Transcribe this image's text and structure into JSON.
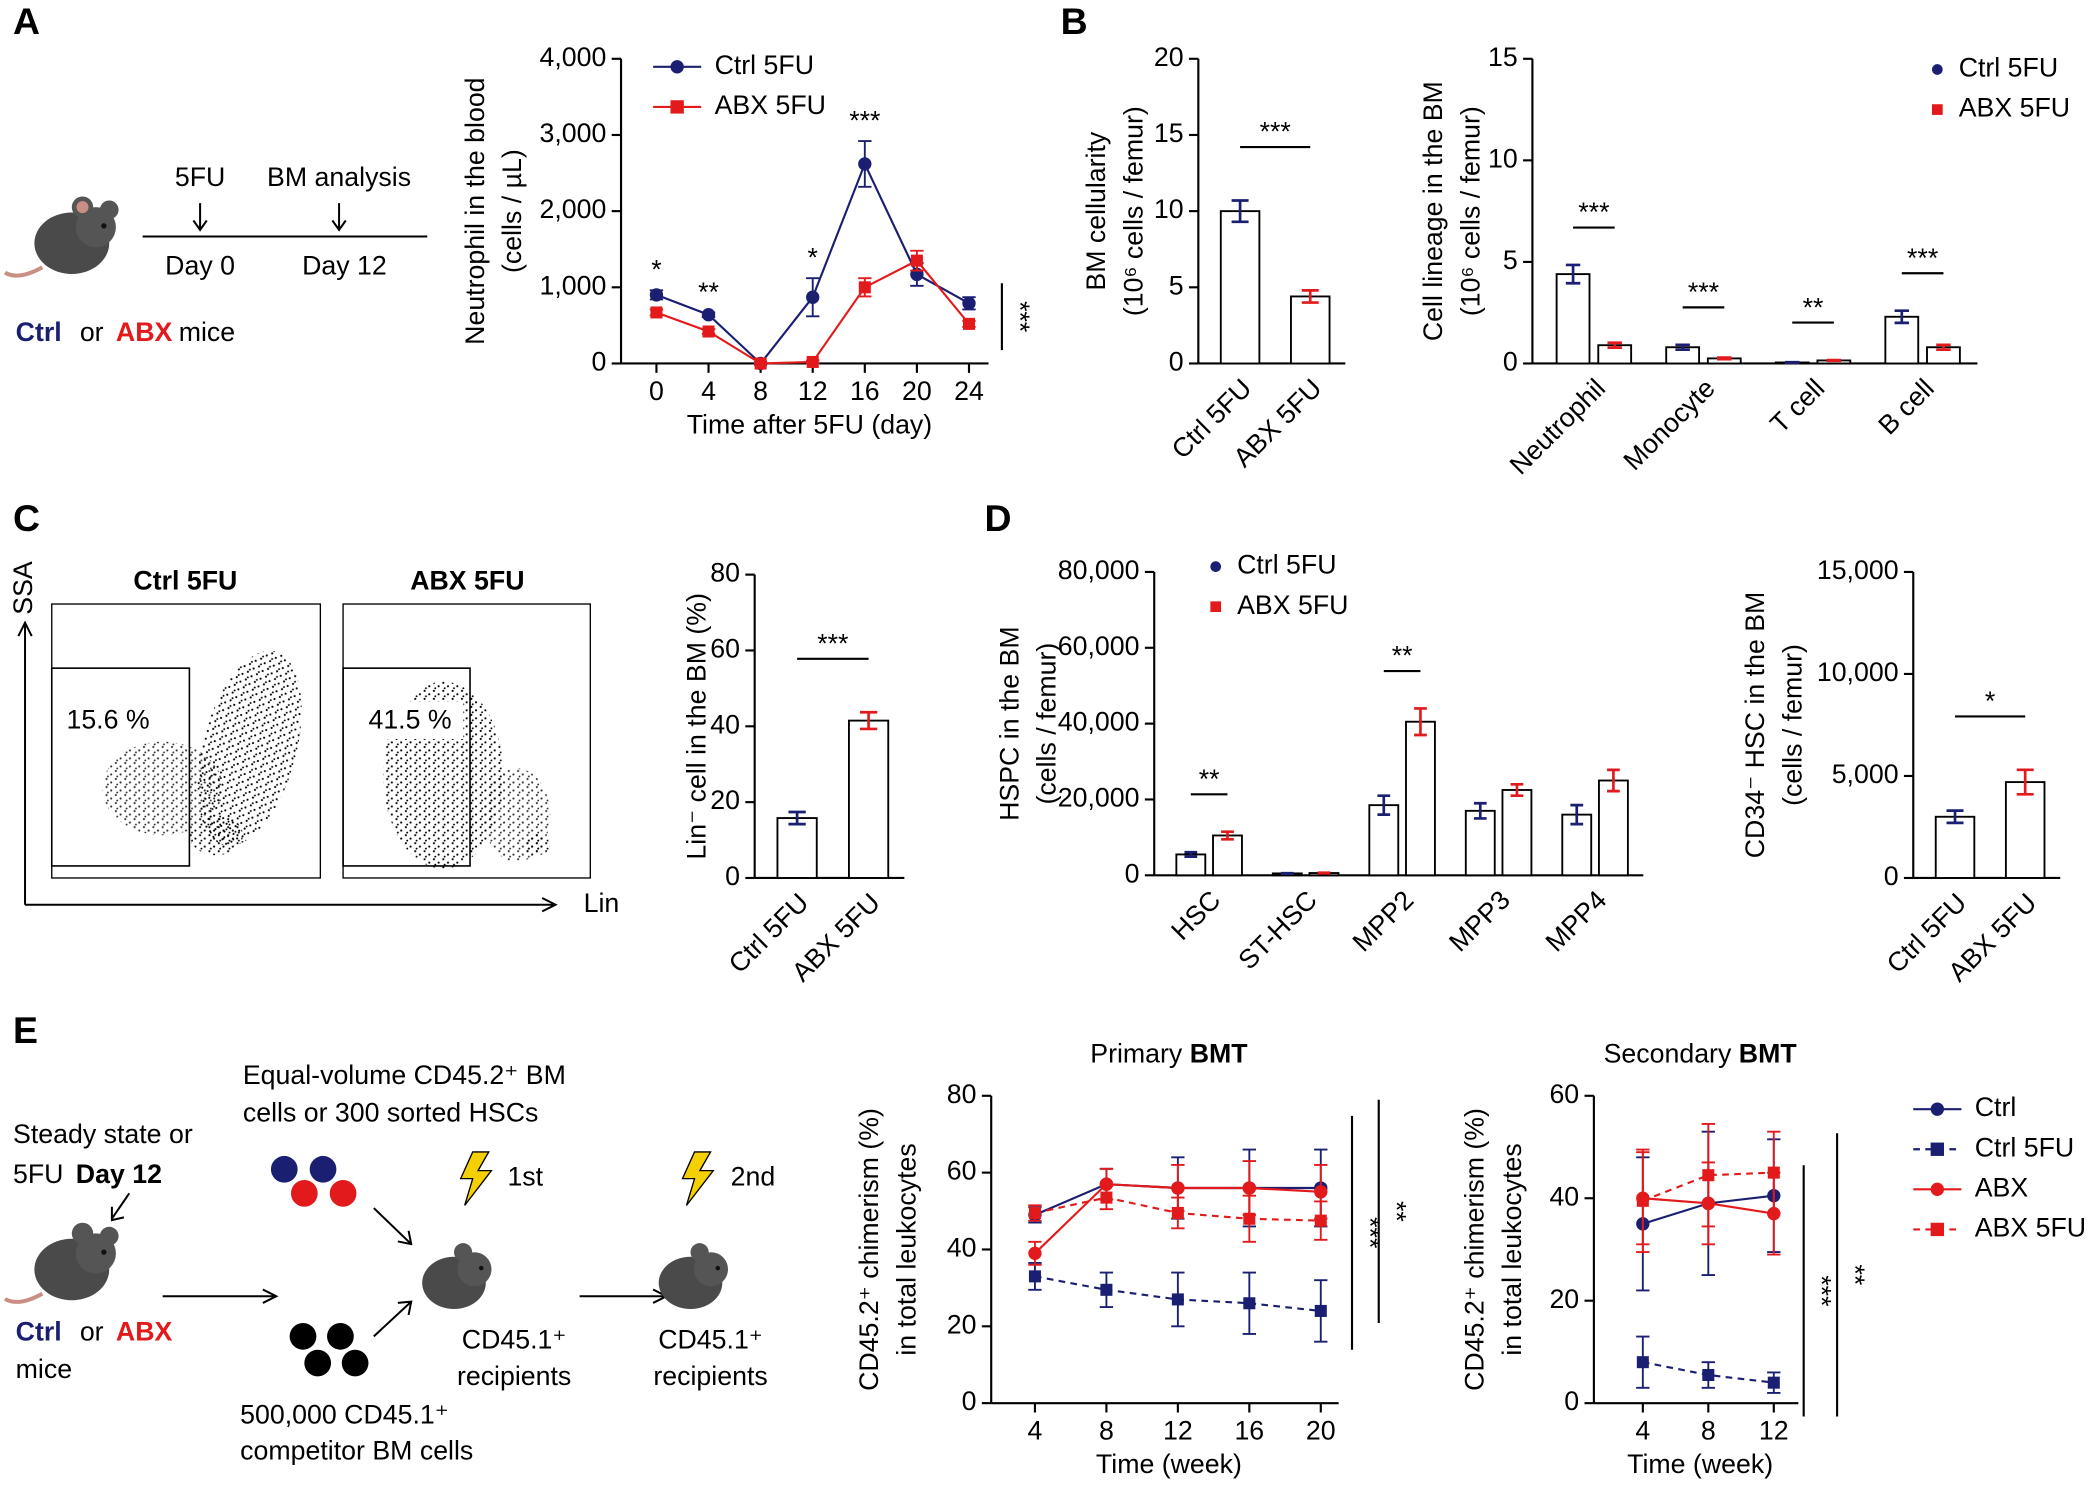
{
  "panel_labels": [
    "A",
    "B",
    "C",
    "D",
    "E"
  ],
  "schematic_a": {
    "events": [
      "5FU",
      "BM analysis"
    ],
    "days": [
      "Day 0",
      "Day 12"
    ],
    "group": [
      "Ctrl",
      "or",
      "ABX",
      "mice"
    ]
  },
  "flow": {
    "plots": [
      {
        "title": "Ctrl 5FU",
        "gate": "15.6 %"
      },
      {
        "title": "ABX 5FU",
        "gate": "41.5 %"
      }
    ],
    "y_axis": "SSA",
    "x_axis": "Lin"
  },
  "schematic_e": {
    "start": "Steady state or",
    "condition": [
      "5FU",
      "Day 12"
    ],
    "group": [
      "Ctrl",
      "or",
      "ABX",
      "mice"
    ],
    "donor": [
      "Equal-volume CD45.2⁺ BM",
      "cells or 300 sorted HSCs"
    ],
    "competitor": [
      "500,000 CD45.1⁺",
      "competitor BM cells"
    ],
    "irradiation": [
      "1st",
      "2nd"
    ],
    "recipients": [
      [
        "CD45.1⁺",
        "recipients"
      ],
      [
        "CD45.1⁺",
        "recipients"
      ]
    ]
  },
  "chart_data": [
    {
      "type": "line",
      "x": [
        0,
        4,
        8,
        12,
        16,
        20,
        24
      ],
      "xlim": [
        -2,
        25.5
      ],
      "xticks": [
        0,
        4,
        8,
        12,
        16,
        20,
        24
      ],
      "ylim": [
        0,
        4000
      ],
      "yticks": [
        0,
        {
          "value": 1000,
          "label": "1,000"
        },
        {
          "value": 2000,
          "label": "2,000"
        },
        {
          "value": 3000,
          "label": "3,000"
        },
        {
          "value": 4000,
          "label": "4,000"
        }
      ],
      "ylabel": [
        "Neutrophil in the blood",
        "(cells / µL)"
      ],
      "xlabel": "Time after 5FU (day)",
      "series": [
        {
          "name": "Ctrl 5FU",
          "color": "#1a1f71",
          "marker": "circle",
          "values": [
            900,
            640,
            0,
            870,
            2620,
            1170,
            790
          ],
          "errors": [
            60,
            30,
            0,
            250,
            300,
            150,
            80
          ]
        },
        {
          "name": "ABX 5FU",
          "color": "#e31a1c",
          "marker": "square",
          "values": [
            670,
            420,
            0,
            20,
            1000,
            1350,
            520
          ],
          "errors": [
            40,
            30,
            0,
            20,
            120,
            130,
            40
          ]
        }
      ],
      "annotations": [
        "*",
        "**",
        null,
        "*",
        "***",
        null,
        null
      ],
      "overall_annotations": [
        "***"
      ]
    },
    {
      "type": "bar",
      "categories": [
        "Ctrl 5FU",
        "ABX 5FU"
      ],
      "ylim": [
        0,
        20
      ],
      "yticks": [
        0,
        5,
        10,
        15,
        20
      ],
      "ylabel": [
        "BM cellularity",
        "(10⁶ cells / femur)"
      ],
      "series": [
        {
          "colors": [
            "#1a1f71",
            "#e31a1c"
          ],
          "values": [
            10.0,
            4.4
          ],
          "errors": [
            0.7,
            0.4
          ]
        }
      ],
      "comparisons": [
        "***"
      ]
    },
    {
      "type": "bar",
      "categories": [
        "Neutrophil",
        "Monocyte",
        "T cell",
        "B cell"
      ],
      "ylim": [
        0,
        15
      ],
      "yticks": [
        0,
        5,
        10,
        15
      ],
      "ylabel": [
        "Cell lineage in the BM",
        "(10⁶ cells / femur)"
      ],
      "series": [
        {
          "name": "Ctrl 5FU",
          "color": "#1a1f71",
          "marker": "circle",
          "values": [
            4.4,
            0.8,
            0.05,
            2.3
          ],
          "errors": [
            0.45,
            0.12,
            0.01,
            0.3
          ]
        },
        {
          "name": "ABX 5FU",
          "color": "#e31a1c",
          "marker": "square",
          "values": [
            0.9,
            0.25,
            0.15,
            0.8
          ],
          "errors": [
            0.12,
            0.04,
            0.02,
            0.12
          ]
        }
      ],
      "annotations": [
        "***",
        "***",
        "**",
        "***"
      ]
    },
    {
      "type": "bar",
      "categories": [
        "Ctrl 5FU",
        "ABX 5FU"
      ],
      "ylim": [
        0,
        80
      ],
      "yticks": [
        0,
        20,
        40,
        60,
        80
      ],
      "ylabel": [
        "Lin⁻ cell in the BM (%)"
      ],
      "series": [
        {
          "colors": [
            "#1a1f71",
            "#e31a1c"
          ],
          "values": [
            15.8,
            41.5
          ],
          "errors": [
            1.6,
            2.2
          ]
        }
      ],
      "comparisons": [
        "***"
      ]
    },
    {
      "type": "bar",
      "categories": [
        "HSC",
        "ST-HSC",
        "MPP2",
        "MPP3",
        "MPP4"
      ],
      "ylim": [
        0,
        80000
      ],
      "yticks": [
        0,
        {
          "value": 20000,
          "label": "20,000"
        },
        {
          "value": 40000,
          "label": "40,000"
        },
        {
          "value": 60000,
          "label": "60,000"
        },
        {
          "value": 80000,
          "label": "80,000"
        }
      ],
      "ylabel": [
        "HSPC in the BM",
        "(cells / femur)"
      ],
      "series": [
        {
          "name": "Ctrl 5FU",
          "color": "#1a1f71",
          "marker": "circle",
          "values": [
            5500,
            500,
            18500,
            17000,
            16000
          ],
          "errors": [
            600,
            60,
            2500,
            2000,
            2500
          ]
        },
        {
          "name": "ABX 5FU",
          "color": "#e31a1c",
          "marker": "square",
          "values": [
            10500,
            600,
            40500,
            22500,
            25000
          ],
          "errors": [
            1000,
            80,
            3500,
            1500,
            2800
          ]
        }
      ],
      "annotations": [
        "**",
        null,
        "**",
        null,
        null
      ]
    },
    {
      "type": "bar",
      "categories": [
        "Ctrl 5FU",
        "ABX 5FU"
      ],
      "ylim": [
        0,
        15000
      ],
      "yticks": [
        0,
        {
          "value": 5000,
          "label": "5,000"
        },
        {
          "value": 10000,
          "label": "10,000"
        },
        {
          "value": 15000,
          "label": "15,000"
        }
      ],
      "ylabel": [
        "CD34⁻ HSC in the BM",
        "(cells / femur)"
      ],
      "series": [
        {
          "colors": [
            "#1a1f71",
            "#e31a1c"
          ],
          "values": [
            3000,
            4700
          ],
          "errors": [
            300,
            600
          ]
        }
      ],
      "comparisons": [
        "*"
      ]
    },
    {
      "type": "line",
      "title": [
        "Primary",
        "BMT"
      ],
      "x": [
        4,
        8,
        12,
        16,
        20
      ],
      "xlim": [
        2,
        21
      ],
      "xticks": [
        4,
        8,
        12,
        16,
        20
      ],
      "ylim": [
        0,
        80
      ],
      "yticks": [
        0,
        20,
        40,
        60,
        80
      ],
      "ylabel": [
        "CD45.2⁺ chimerism (%)",
        "in total leukocytes"
      ],
      "xlabel": "Time (week)",
      "series": [
        {
          "name": "Ctrl",
          "color": "#1a1f71",
          "marker": "circle",
          "linestyle": "solid",
          "values": [
            49,
            57,
            56,
            56,
            56
          ],
          "errors": [
            2,
            4,
            8,
            10,
            10
          ]
        },
        {
          "name": "Ctrl 5FU",
          "color": "#1a1f71",
          "marker": "square",
          "linestyle": "dashed",
          "values": [
            33,
            29.5,
            27,
            26,
            24
          ],
          "errors": [
            3.5,
            4.5,
            7,
            8,
            8
          ]
        },
        {
          "name": "ABX",
          "color": "#e31a1c",
          "marker": "circle",
          "linestyle": "solid",
          "values": [
            39,
            57,
            56,
            56,
            55
          ],
          "errors": [
            3,
            4,
            6,
            7,
            7
          ]
        },
        {
          "name": "ABX 5FU",
          "color": "#e31a1c",
          "marker": "square",
          "linestyle": "dashed",
          "values": [
            49.5,
            53.5,
            49.5,
            48,
            47.5
          ],
          "errors": [
            2,
            3,
            4,
            6,
            5
          ]
        }
      ],
      "overall_annotations": [
        "***",
        "**"
      ]
    },
    {
      "type": "line",
      "title": [
        "Secondary",
        "BMT"
      ],
      "x": [
        4,
        8,
        12
      ],
      "xlim": [
        1.5,
        13.5
      ],
      "xticks": [
        4,
        8,
        12
      ],
      "ylim": [
        0,
        60
      ],
      "yticks": [
        0,
        20,
        40,
        60
      ],
      "ylabel": [
        "CD45.2⁺ chimerism (%)",
        "in total leukocytes"
      ],
      "xlabel": "Time (week)",
      "series": [
        {
          "name": "Ctrl",
          "color": "#1a1f71",
          "marker": "circle",
          "linestyle": "solid",
          "values": [
            35,
            39,
            40.5
          ],
          "errors": [
            13,
            14,
            11
          ]
        },
        {
          "name": "Ctrl 5FU",
          "color": "#1a1f71",
          "marker": "square",
          "linestyle": "dashed",
          "values": [
            8,
            5.5,
            4
          ],
          "errors": [
            5,
            2.5,
            2
          ]
        },
        {
          "name": "ABX",
          "color": "#e31a1c",
          "marker": "circle",
          "linestyle": "solid",
          "values": [
            40,
            39,
            37
          ],
          "errors": [
            9,
            8,
            8
          ]
        },
        {
          "name": "ABX 5FU",
          "color": "#e31a1c",
          "marker": "square",
          "linestyle": "dashed",
          "values": [
            39.5,
            44.5,
            45
          ],
          "errors": [
            10,
            10,
            8
          ]
        }
      ],
      "overall_annotations": [
        "***",
        "**"
      ],
      "legend": true
    }
  ]
}
